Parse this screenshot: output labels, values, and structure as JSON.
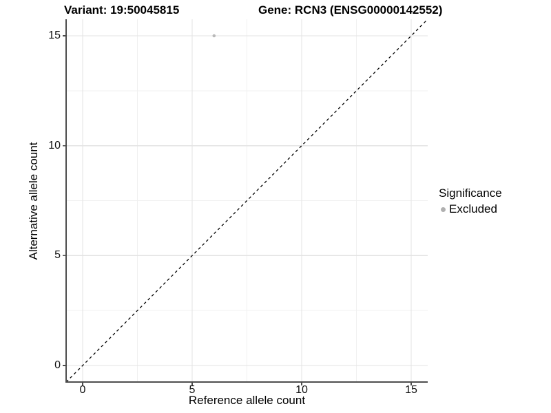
{
  "chart_data": {
    "type": "scatter",
    "title_left": "Variant: 19:50045815",
    "title_right": "Gene: RCN3 (ENSG00000142552)",
    "xlabel": "Reference allele count",
    "ylabel": "Alternative allele count",
    "xlim": [
      -0.75,
      15.75
    ],
    "ylim": [
      -0.75,
      15.75
    ],
    "x_ticks": [
      0,
      5,
      10,
      15
    ],
    "y_ticks": [
      0,
      5,
      10,
      15
    ],
    "x_minor_ticks": [
      2.5,
      7.5,
      12.5
    ],
    "y_minor_ticks": [
      2.5,
      7.5,
      12.5
    ],
    "grid": "major and minor, light grey on white",
    "reference_line": {
      "type": "identity y=x",
      "style": "dashed",
      "color": "#000000"
    },
    "series": [
      {
        "name": "Excluded",
        "color": "#b9b9b9",
        "points": [
          {
            "x": 6,
            "y": 15
          }
        ]
      }
    ],
    "legend": {
      "title": "Significance",
      "position": "right",
      "items": [
        {
          "label": "Excluded",
          "color": "#b0b0b0"
        }
      ]
    }
  },
  "colors": {
    "background": "#ffffff",
    "axis_line": "#4d4d4d",
    "grid_major": "#e3e3e3",
    "grid_minor": "#f0f0f0",
    "tick_label": "#111111",
    "title_text": "#000000",
    "point": "#b9b9b9",
    "dashed_line": "#000000"
  }
}
